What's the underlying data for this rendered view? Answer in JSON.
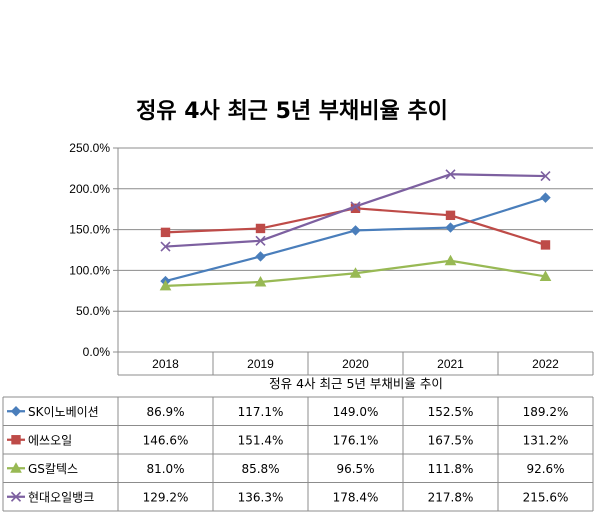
{
  "chart_data": {
    "type": "line",
    "title": "정유 4사 최근 5년 부채비율 추이",
    "xlabel": "정유 4사 최근 5년 부채비율 추이",
    "ylabel": "",
    "categories": [
      "2018",
      "2019",
      "2020",
      "2021",
      "2022"
    ],
    "ylim": [
      0,
      250
    ],
    "yticks": [
      "0.0%",
      "50.0%",
      "100.0%",
      "150.0%",
      "200.0%",
      "250.0%"
    ],
    "grid": true,
    "legend": "data-table",
    "series": [
      {
        "name": "SK이노베이션",
        "color": "#4a7ebb",
        "marker": "diamond",
        "values": [
          86.9,
          117.1,
          149.0,
          152.5,
          189.2
        ],
        "labels": [
          "86.9%",
          "117.1%",
          "149.0%",
          "152.5%",
          "189.2%"
        ]
      },
      {
        "name": "에쓰오일",
        "color": "#be4b48",
        "marker": "square",
        "values": [
          146.6,
          151.4,
          176.1,
          167.5,
          131.2
        ],
        "labels": [
          "146.6%",
          "151.4%",
          "176.1%",
          "167.5%",
          "131.2%"
        ]
      },
      {
        "name": "GS칼텍스",
        "color": "#98b954",
        "marker": "triangle",
        "values": [
          81.0,
          85.8,
          96.5,
          111.8,
          92.6
        ],
        "labels": [
          "81.0%",
          "85.8%",
          "96.5%",
          "111.8%",
          "92.6%"
        ]
      },
      {
        "name": "현대오일뱅크",
        "color": "#7d60a0",
        "marker": "x",
        "values": [
          129.2,
          136.3,
          178.4,
          217.8,
          215.6
        ],
        "labels": [
          "129.2%",
          "136.3%",
          "178.4%",
          "217.8%",
          "215.6%"
        ]
      }
    ]
  }
}
